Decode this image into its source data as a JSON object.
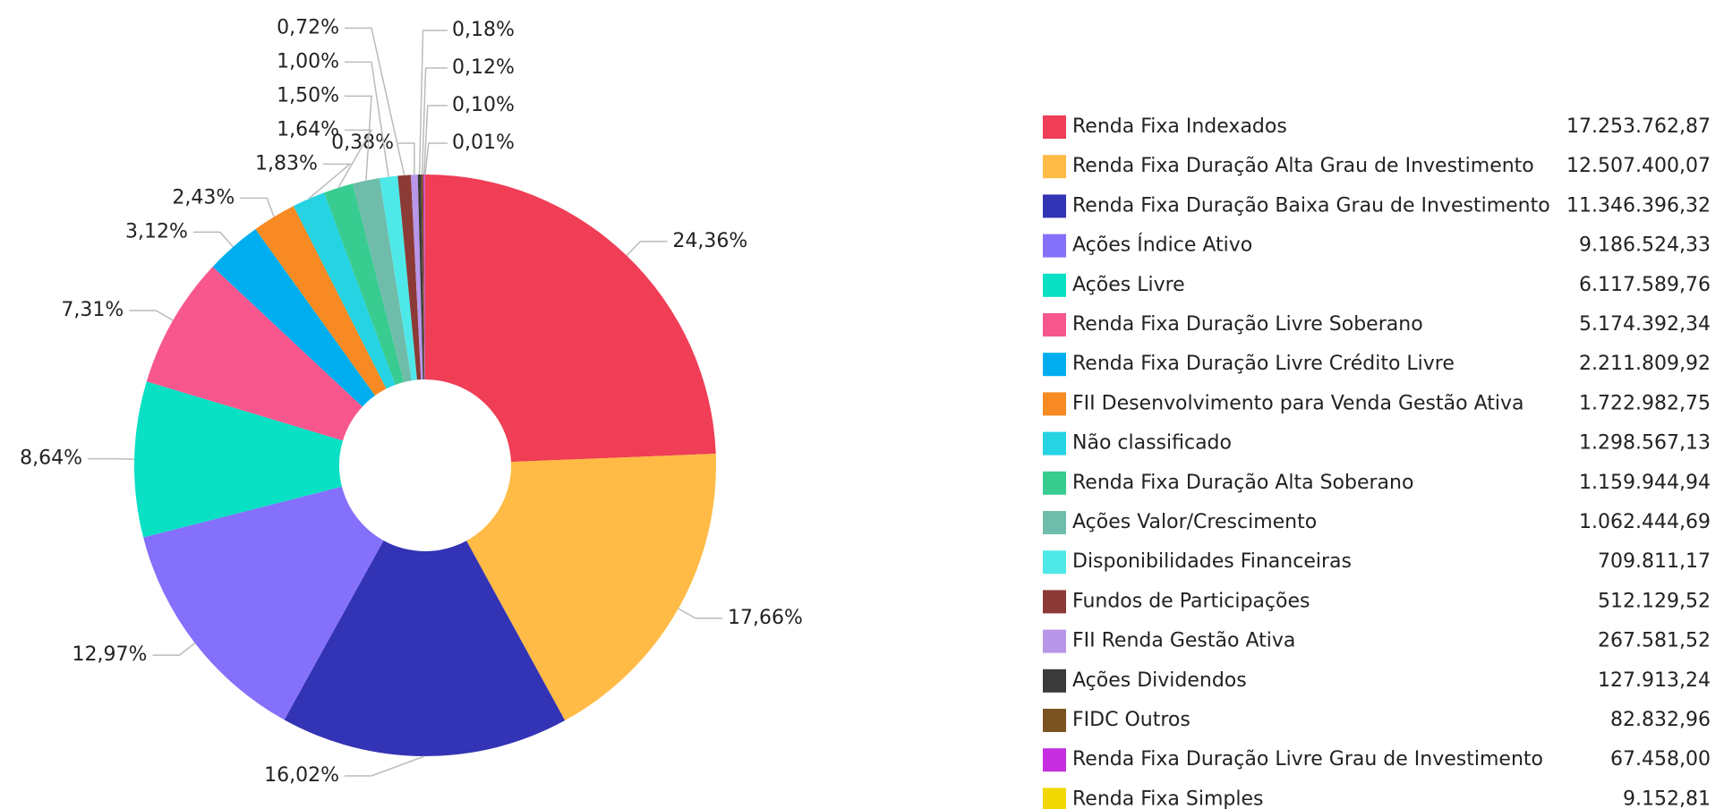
{
  "chart_data": {
    "type": "pie",
    "categories": [
      "Renda Fixa Indexados",
      "Renda Fixa Duração Alta Grau de Investimento",
      "Renda Fixa Duração Baixa Grau de Investimento",
      "Ações Índice Ativo",
      "Ações Livre",
      "Renda Fixa Duração Livre Soberano",
      "Renda Fixa Duração Livre Crédito Livre",
      "FII Desenvolvimento para Venda Gestão Ativa",
      "Não classificado",
      "Renda Fixa Duração Alta Soberano",
      "Ações Valor/Crescimento",
      "Disponibilidades Financeiras",
      "Fundos de Participações",
      "FII Renda Gestão Ativa",
      "Ações Dividendos",
      "FIDC Outros",
      "Renda Fixa Duração Livre Grau de Investimento",
      "Renda Fixa Simples"
    ],
    "values": [
      17253762.87,
      12507400.07,
      11346396.32,
      9186524.33,
      6117589.76,
      5174392.34,
      2211809.92,
      1722982.75,
      1298567.13,
      1159944.94,
      1062444.69,
      709811.17,
      512129.52,
      267581.52,
      127913.24,
      82832.96,
      67458.0,
      9152.81
    ],
    "value_labels": [
      "17.253.762,87",
      "12.507.400,07",
      "11.346.396,32",
      "9.186.524,33",
      "6.117.589,76",
      "5.174.392,34",
      "2.211.809,92",
      "1.722.982,75",
      "1.298.567,13",
      "1.159.944,94",
      "1.062.444,69",
      "709.811,17",
      "512.129,52",
      "267.581,52",
      "127.913,24",
      "82.832,96",
      "67.458,00",
      "9.152,81"
    ],
    "percentages": [
      24.36,
      17.66,
      16.02,
      12.97,
      8.64,
      7.31,
      3.12,
      2.43,
      1.83,
      1.64,
      1.5,
      1.0,
      0.72,
      0.38,
      0.18,
      0.12,
      0.1,
      0.01
    ],
    "percentage_labels": [
      "24,36%",
      "17,66%",
      "16,02%",
      "12,97%",
      "8,64%",
      "7,31%",
      "3,12%",
      "2,43%",
      "1,83%",
      "1,64%",
      "1,50%",
      "1,00%",
      "0,72%",
      "0,38%",
      "0,18%",
      "0,12%",
      "0,10%",
      "0,01%"
    ],
    "colors": [
      "#ef3e55",
      "#ffbb45",
      "#3333b5",
      "#8470fa",
      "#09e0c4",
      "#f7578c",
      "#00aef0",
      "#f78a22",
      "#25d3e3",
      "#38cc91",
      "#6fbcaa",
      "#4fe8e8",
      "#8b3a35",
      "#b896e8",
      "#3a3a3a",
      "#7a5420",
      "#c42ee0",
      "#f0d800"
    ],
    "legend": "right"
  }
}
